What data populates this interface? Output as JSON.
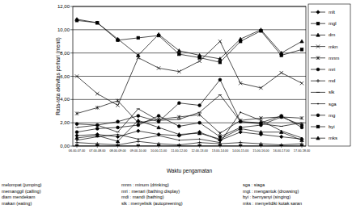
{
  "chart_data": {
    "type": "line",
    "y_label": "Rata-rata aktivitas perhari (menit)",
    "x_label": "Waktu pengamatan",
    "categories": [
      "06.00-07.00",
      "07.00-08.00",
      "08.00-09.00",
      "09.00-10.00",
      "10.00-11.00",
      "11.00-12.00",
      "12.00-13.00",
      "13.00-14.00",
      "14.00-15.00",
      "15.00-16.00",
      "16.00-17.00",
      "17.00-18.00"
    ],
    "ylim": [
      0,
      12
    ],
    "yticks": [
      {
        "value": 0,
        "label": "0,00"
      },
      {
        "value": 2,
        "label": "2,00"
      },
      {
        "value": 4,
        "label": "4,00"
      },
      {
        "value": 6,
        "label": "6,00"
      },
      {
        "value": 8,
        "label": "8,00"
      },
      {
        "value": 10,
        "label": "10,00"
      },
      {
        "value": 12,
        "label": "12,00"
      }
    ],
    "grid": true,
    "legend": "right",
    "series": [
      {
        "name": "mlt",
        "color": "#000000",
        "marker": "diamond",
        "values": [
          0.9,
          1.0,
          0.8,
          1.3,
          1.0,
          0.9,
          1.2,
          0.5,
          1.2,
          1.0,
          0.8,
          0.6
        ]
      },
      {
        "name": "mgl",
        "color": "#000000",
        "marker": "square",
        "values": [
          10.8,
          10.6,
          9.1,
          9.3,
          9.5,
          7.9,
          7.6,
          7.2,
          9.0,
          9.9,
          7.8,
          8.3
        ]
      },
      {
        "name": "dm",
        "color": "#000000",
        "marker": "triangle",
        "values": [
          10.9,
          10.6,
          9.2,
          7.8,
          9.6,
          8.2,
          7.8,
          7.5,
          9.2,
          10.0,
          8.0,
          9.0
        ]
      },
      {
        "name": "mkn",
        "color": "#000000",
        "marker": "x",
        "values": [
          6.0,
          4.5,
          3.5,
          7.6,
          6.7,
          6.4,
          7.3,
          9.0,
          5.4,
          5.0,
          6.3,
          5.4
        ]
      },
      {
        "name": "mnm",
        "color": "#000000",
        "marker": "asterisk",
        "values": [
          2.8,
          3.3,
          3.9,
          2.0,
          2.3,
          2.5,
          2.7,
          1.1,
          2.2,
          2.4,
          2.5,
          2.4
        ]
      },
      {
        "name": "mri",
        "color": "#000000",
        "marker": "circle",
        "values": [
          1.9,
          1.8,
          2.1,
          2.6,
          2.1,
          3.7,
          3.5,
          5.7,
          2.1,
          2.0,
          2.6,
          1.6
        ]
      },
      {
        "name": "md",
        "color": "#000000",
        "marker": "plus",
        "values": [
          0.3,
          0.2,
          0.1,
          0.4,
          0.2,
          0.1,
          0.3,
          0.2,
          0.3,
          0.2,
          0.1,
          0.2
        ]
      },
      {
        "name": "slk",
        "color": "#000000",
        "marker": "dash",
        "values": [
          1.6,
          1.8,
          1.2,
          3.2,
          2.2,
          2.3,
          2.9,
          4.4,
          2.1,
          1.9,
          1.7,
          2.0
        ]
      },
      {
        "name": "sga",
        "color": "#000000",
        "marker": "none",
        "values": [
          0.5,
          0.8,
          1.0,
          0.6,
          0.9,
          0.5,
          0.6,
          0.3,
          2.9,
          2.2,
          1.3,
          0.7
        ]
      },
      {
        "name": "mg",
        "color": "#000000",
        "marker": "circle",
        "values": [
          1.2,
          1.5,
          1.6,
          1.8,
          2.6,
          1.7,
          2.0,
          0.8,
          1.6,
          1.8,
          2.5,
          1.8
        ]
      },
      {
        "name": "byi",
        "color": "#000000",
        "marker": "square",
        "values": [
          0.0,
          0.0,
          0.0,
          0.0,
          0.0,
          0.0,
          0.0,
          0.0,
          0.0,
          0.0,
          0.0,
          0.0
        ]
      },
      {
        "name": "mks",
        "color": "#000000",
        "marker": "triangle",
        "values": [
          0.7,
          0.9,
          0.4,
          2.2,
          1.6,
          1.0,
          1.1,
          0.6,
          1.5,
          1.2,
          1.2,
          0.5
        ]
      }
    ],
    "annotations": [
      "melompat (jumping)",
      "memanggil (calling)",
      "diam mendekam",
      "makan (eating)",
      "mnm  :  minum (drinking)",
      "mri  :  menari (bathing display)",
      "mdi  :  mandi (bathing)",
      "slk  :  menyelisik (autopreening)",
      "sga  :  siaga",
      "mgt  :  mengantuk (drowsing)",
      "byi  :  bernyanyi (singing)",
      "mks  :  menyelidiki kotak saran"
    ]
  }
}
